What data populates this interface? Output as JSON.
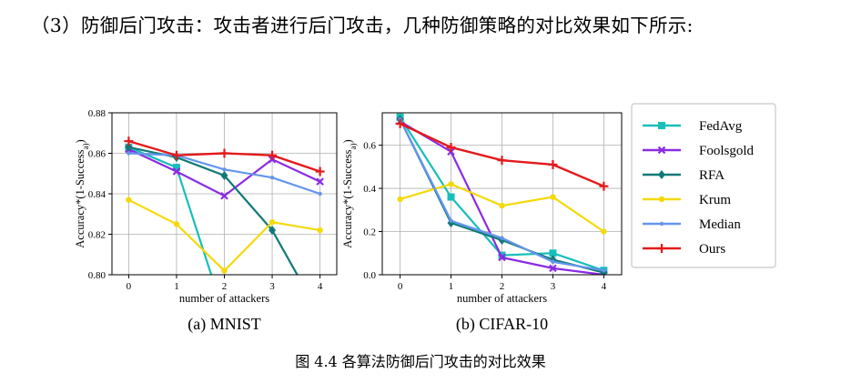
{
  "paragraph": "（3）防御后门攻击：攻击者进行后门攻击，几种防御策略的对比效果如下所示:",
  "figure_caption": "图 4.4 各算法防御后门攻击的对比效果",
  "legend": [
    {
      "name": "FedAvg",
      "color": "#17bebb",
      "marker": "square"
    },
    {
      "name": "Foolsgold",
      "color": "#8a2be2",
      "marker": "x"
    },
    {
      "name": "RFA",
      "color": "#117a76",
      "marker": "diamond"
    },
    {
      "name": "Krum",
      "color": "#f5d90a",
      "marker": "circle"
    },
    {
      "name": "Median",
      "color": "#6495ed",
      "marker": "dot"
    },
    {
      "name": "Ours",
      "color": "#e31a1c",
      "marker": "plus"
    }
  ],
  "chart_data": [
    {
      "type": "line",
      "subtitle": "(a) MNIST",
      "xlabel": "number of attackers",
      "ylabel": "Accuracy*(1-Success_a)",
      "x": [
        0,
        1,
        2,
        3,
        4
      ],
      "xticks": [
        "0",
        "1",
        "2",
        "3",
        "4"
      ],
      "ylim": [
        0.8,
        0.88
      ],
      "yticks": [
        "0.80",
        "0.82",
        "0.84",
        "0.86",
        "0.88"
      ],
      "grid": true,
      "series": [
        {
          "name": "FedAvg",
          "values": [
            0.863,
            0.853,
            0.78,
            null,
            null
          ]
        },
        {
          "name": "Foolsgold",
          "values": [
            0.862,
            0.851,
            0.839,
            0.857,
            0.846
          ]
        },
        {
          "name": "RFA",
          "values": [
            0.863,
            0.858,
            0.849,
            0.822,
            0.78
          ]
        },
        {
          "name": "Krum",
          "values": [
            0.837,
            0.825,
            0.802,
            0.826,
            0.822
          ]
        },
        {
          "name": "Median",
          "values": [
            0.86,
            0.859,
            0.852,
            0.848,
            0.84
          ]
        },
        {
          "name": "Ours",
          "values": [
            0.866,
            0.859,
            0.86,
            0.859,
            0.851
          ]
        }
      ]
    },
    {
      "type": "line",
      "subtitle": "(b) CIFAR-10",
      "xlabel": "number of attackers",
      "ylabel": "Accuracy*(1-Success_a)",
      "x": [
        0,
        1,
        2,
        3,
        4
      ],
      "xticks": [
        "0",
        "1",
        "2",
        "3",
        "4"
      ],
      "ylim": [
        0.0,
        0.75
      ],
      "yticks": [
        "0.0",
        "0.2",
        "0.4",
        "0.6"
      ],
      "grid": true,
      "series": [
        {
          "name": "FedAvg",
          "values": [
            0.73,
            0.36,
            0.09,
            0.1,
            0.02
          ]
        },
        {
          "name": "Foolsgold",
          "values": [
            0.71,
            0.57,
            0.08,
            0.03,
            0.0
          ]
        },
        {
          "name": "RFA",
          "values": [
            0.72,
            0.24,
            0.16,
            0.07,
            0.01
          ]
        },
        {
          "name": "Krum",
          "values": [
            0.35,
            0.42,
            0.32,
            0.36,
            0.2
          ]
        },
        {
          "name": "Median",
          "values": [
            0.72,
            0.25,
            0.17,
            0.06,
            0.02
          ]
        },
        {
          "name": "Ours",
          "values": [
            0.7,
            0.59,
            0.53,
            0.51,
            0.41
          ]
        }
      ]
    }
  ]
}
